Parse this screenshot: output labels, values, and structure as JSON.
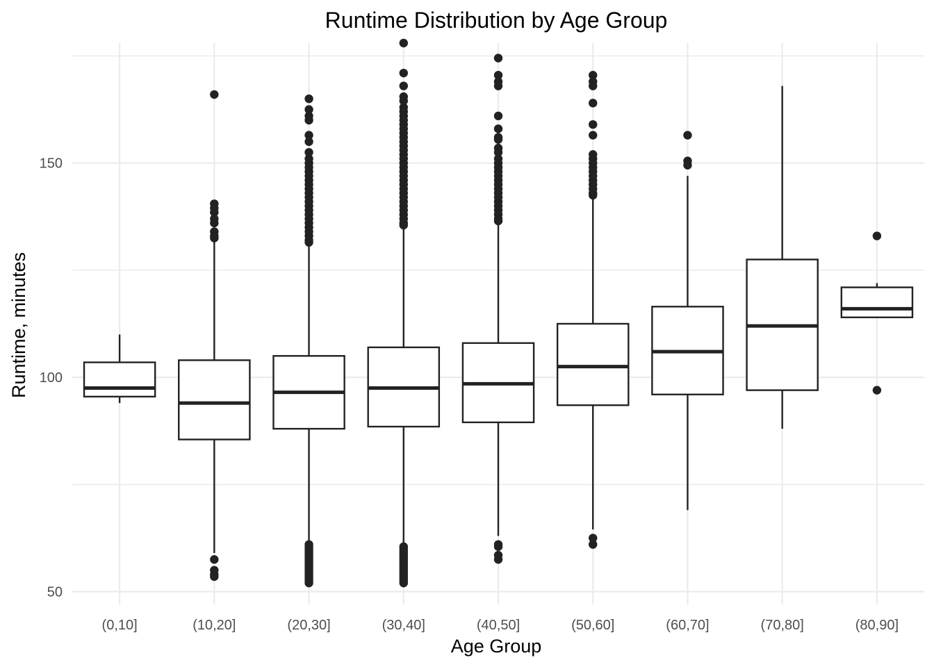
{
  "chart_data": {
    "type": "boxplot",
    "title": "Runtime Distribution by Age Group",
    "xlabel": "Age Group",
    "ylabel": "Runtime, minutes",
    "categories": [
      "(0,10]",
      "(10,20]",
      "(20,30]",
      "(30,40]",
      "(40,50]",
      "(50,60]",
      "(60,70]",
      "(70,80]",
      "(80,90]"
    ],
    "ylim": [
      47,
      178
    ],
    "yticks": [
      50,
      100,
      150
    ],
    "grid": true,
    "legend": "none",
    "colors": {
      "box_stroke": "#222222",
      "box_fill": "#ffffff",
      "grid": "#ebebeb"
    },
    "boxes": [
      {
        "category": "(0,10]",
        "whisker_low": 94,
        "q1": 95.5,
        "median": 97.5,
        "q3": 103.5,
        "whisker_high": 110,
        "outliers": []
      },
      {
        "category": "(10,20]",
        "whisker_low": 59,
        "q1": 85.5,
        "median": 94,
        "q3": 104,
        "whisker_high": 132,
        "outliers": [
          166,
          140.5,
          139.5,
          138.5,
          137,
          136,
          134,
          133,
          132.5,
          57.5,
          55,
          54,
          53.5
        ]
      },
      {
        "category": "(20,30]",
        "whisker_low": 61.5,
        "q1": 88,
        "median": 96.5,
        "q3": 105,
        "whisker_high": 131,
        "outliers": [
          165,
          162.5,
          161,
          160,
          156.5,
          155,
          152.5,
          151,
          150,
          149,
          148,
          147,
          146,
          145,
          144,
          143,
          142,
          141,
          140,
          139,
          138,
          137,
          136,
          135,
          134,
          133,
          132,
          131.5,
          61,
          60.5,
          60,
          59.5,
          59,
          58.5,
          58,
          57.5,
          57,
          56.5,
          56,
          55.5,
          55,
          54.5,
          54,
          53.5,
          53,
          52.5,
          52
        ]
      },
      {
        "category": "(30,40]",
        "whisker_low": 61,
        "q1": 88.5,
        "median": 97.5,
        "q3": 107,
        "whisker_high": 135,
        "outliers": [
          178,
          171,
          168,
          165.5,
          164.5,
          163,
          162,
          161,
          160,
          159,
          158,
          157,
          156,
          155,
          154,
          153,
          152,
          151,
          150,
          149,
          148,
          147,
          146,
          145,
          144,
          143,
          142,
          141,
          140,
          139,
          138,
          137,
          136,
          135.5,
          60.5,
          60,
          59.5,
          59,
          58.5,
          58,
          57.5,
          57,
          56.5,
          56,
          55.5,
          55,
          54.5,
          54,
          53.5,
          53,
          52.5,
          52
        ]
      },
      {
        "category": "(40,50]",
        "whisker_low": 63,
        "q1": 89.5,
        "median": 98.5,
        "q3": 108,
        "whisker_high": 136,
        "outliers": [
          174.5,
          170.5,
          169,
          168,
          161,
          158,
          156,
          155.5,
          153.5,
          152.5,
          151,
          150,
          149,
          148,
          147,
          146,
          145,
          144,
          143,
          142,
          141,
          140,
          139,
          138,
          137,
          136.5,
          61,
          60.5,
          58.5,
          57.5
        ]
      },
      {
        "category": "(50,60]",
        "whisker_low": 64.5,
        "q1": 93.5,
        "median": 102.5,
        "q3": 112.5,
        "whisker_high": 142,
        "outliers": [
          170.5,
          169,
          168,
          164,
          159,
          156.5,
          152,
          151,
          150,
          149,
          148,
          147,
          146,
          145,
          144,
          143,
          142.5,
          62.5,
          61
        ]
      },
      {
        "category": "(60,70]",
        "whisker_low": 69,
        "q1": 96,
        "median": 106,
        "q3": 116.5,
        "whisker_high": 147,
        "outliers": [
          156.5,
          150.5,
          149.5
        ]
      },
      {
        "category": "(70,80]",
        "whisker_low": 88,
        "q1": 97,
        "median": 112,
        "q3": 127.5,
        "whisker_high": 168,
        "outliers": []
      },
      {
        "category": "(80,90]",
        "whisker_low": 114,
        "q1": 114,
        "median": 116,
        "q3": 121,
        "whisker_high": 122,
        "outliers": [
          133,
          97
        ]
      }
    ]
  }
}
